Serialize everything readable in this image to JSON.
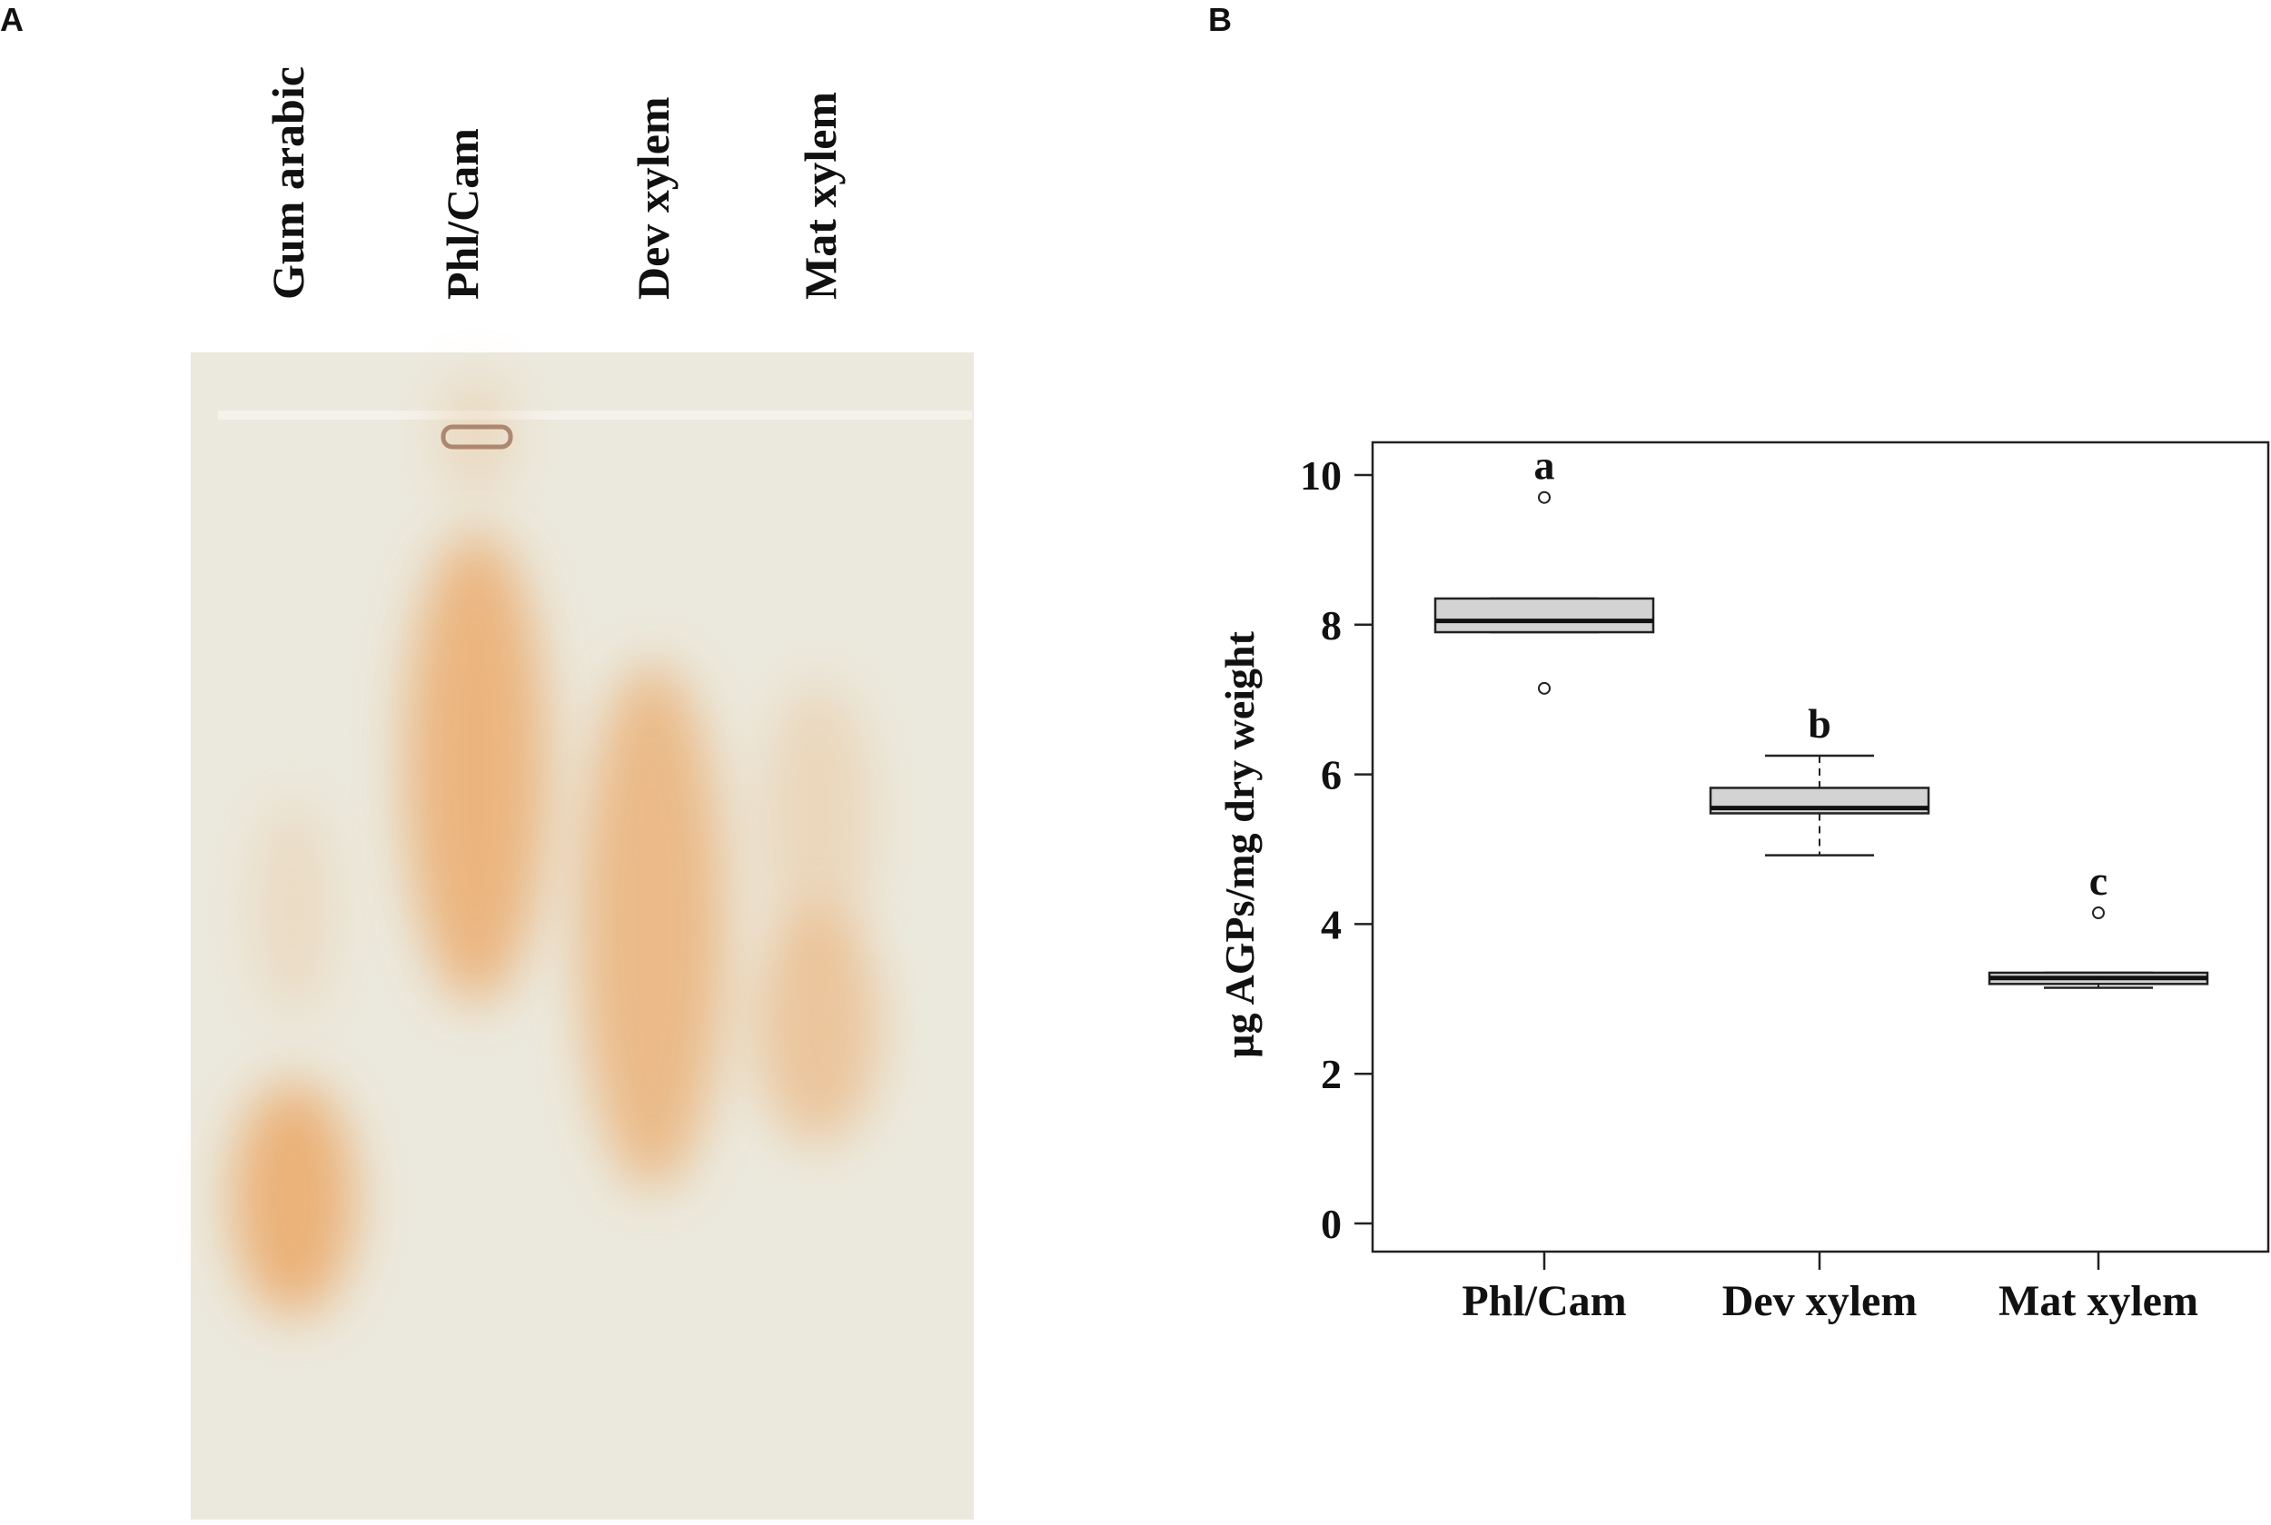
{
  "panel_a": {
    "letter": "A",
    "lanes": [
      "Gum arabic",
      "Phl/Cam",
      "Dev xylem",
      "Mat xylem"
    ],
    "gel_background": "#ebe9dd",
    "stain_color": "#eba867"
  },
  "panel_b": {
    "letter": "B"
  },
  "chart_data": {
    "type": "box",
    "categories": [
      "Phl/Cam",
      "Dev xylem",
      "Mat xylem"
    ],
    "ylabel": "µg AGPs/mg dry weight",
    "xlabel": "",
    "title": "",
    "ylim": [
      0,
      10.5
    ],
    "yticks": [
      "0",
      "2",
      "4",
      "6",
      "8",
      "10"
    ],
    "grid": false,
    "boxes": [
      {
        "q1": 7.9,
        "median": 8.05,
        "q3": 8.35,
        "whisker_low": 7.9,
        "whisker_high": 8.35,
        "outliers": [
          9.7,
          7.15
        ],
        "group": "a"
      },
      {
        "q1": 5.48,
        "median": 5.55,
        "q3": 5.82,
        "whisker_low": 4.92,
        "whisker_high": 6.25,
        "outliers": [],
        "group": "b"
      },
      {
        "q1": 3.2,
        "median": 3.28,
        "q3": 3.35,
        "whisker_low": 3.15,
        "whisker_high": 3.35,
        "outliers": [
          4.15
        ],
        "group": "c"
      }
    ],
    "box_fill": "#d3d3d3"
  }
}
